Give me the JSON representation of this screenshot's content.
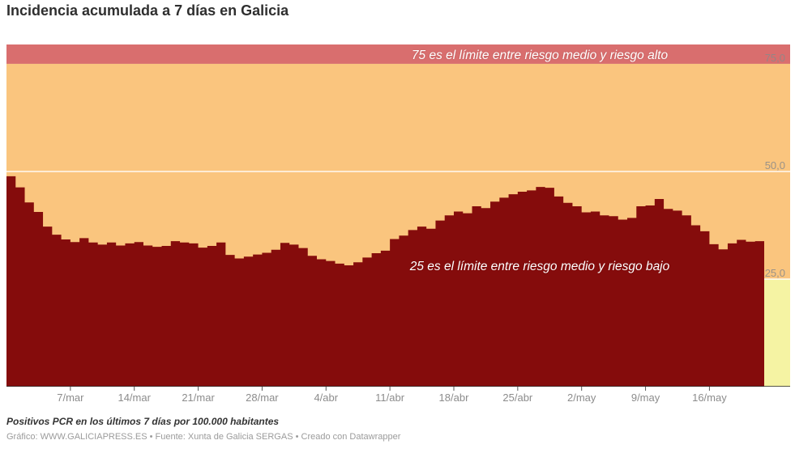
{
  "title": "Incidencia acumulada a 7 días en Galicia",
  "annotations": {
    "high": "75 es el límite entre riesgo medio y riesgo alto",
    "low": "25 es el límite entre riesgo medio y riesgo bajo"
  },
  "footer": {
    "note": "Positivos PCR en los últimos 7 días por 100.000 habitantes",
    "credit": "Gráfico: WWW.GALICIAPRESS.ES • Fuente: Xunta de Galicia SERGAS • Creado con Datawrapper"
  },
  "colors": {
    "area": "#850C0C",
    "band_high": "#D96E6E",
    "band_mid": "#FAC57E",
    "band_low": "#F5F3A3",
    "grid": "#FFFFFF",
    "axis": "#2E2E2E",
    "tick_label": "#8C8C8C",
    "y_label": "#8A8A8A",
    "annotation": "#FFFFFF"
  },
  "chart_data": {
    "type": "area",
    "step": true,
    "title": "Incidencia acumulada a 7 días en Galicia",
    "ylabel": "Positivos PCR en los últimos 7 días por 100.000 habitantes",
    "xlabel": "",
    "ylim": [
      0,
      79.5
    ],
    "grid": "horizontal-white",
    "bands": [
      {
        "name": "riesgo-alto",
        "from": 75,
        "to": 79.5,
        "color": "#D96E6E"
      },
      {
        "name": "riesgo-medio",
        "from": 25,
        "to": 75,
        "color": "#FAC57E"
      },
      {
        "name": "riesgo-bajo",
        "from": 0,
        "to": 25,
        "color": "#F5F3A3"
      }
    ],
    "y_ticks": [
      {
        "value": 75,
        "label": "75,0",
        "line": false
      },
      {
        "value": 50,
        "label": "50,0",
        "line": true
      },
      {
        "value": 25,
        "label": "25,0",
        "line": true
      }
    ],
    "x_ticks": [
      {
        "index": 7,
        "label": "7/mar"
      },
      {
        "index": 14,
        "label": "14/mar"
      },
      {
        "index": 21,
        "label": "21/mar"
      },
      {
        "index": 28,
        "label": "28/mar"
      },
      {
        "index": 35,
        "label": "4/abr"
      },
      {
        "index": 42,
        "label": "11/abr"
      },
      {
        "index": 49,
        "label": "18/abr"
      },
      {
        "index": 56,
        "label": "25/abr"
      },
      {
        "index": 63,
        "label": "2/may"
      },
      {
        "index": 70,
        "label": "9/may"
      },
      {
        "index": 77,
        "label": "16/may"
      }
    ],
    "x": [
      "28/feb",
      "1/mar",
      "2/mar",
      "3/mar",
      "4/mar",
      "5/mar",
      "6/mar",
      "7/mar",
      "8/mar",
      "9/mar",
      "10/mar",
      "11/mar",
      "12/mar",
      "13/mar",
      "14/mar",
      "15/mar",
      "16/mar",
      "17/mar",
      "18/mar",
      "19/mar",
      "20/mar",
      "21/mar",
      "22/mar",
      "23/mar",
      "24/mar",
      "25/mar",
      "26/mar",
      "27/mar",
      "28/mar",
      "29/mar",
      "30/mar",
      "31/mar",
      "1/abr",
      "2/abr",
      "3/abr",
      "4/abr",
      "5/abr",
      "6/abr",
      "7/abr",
      "8/abr",
      "9/abr",
      "10/abr",
      "11/abr",
      "12/abr",
      "13/abr",
      "14/abr",
      "15/abr",
      "16/abr",
      "17/abr",
      "18/abr",
      "19/abr",
      "20/abr",
      "21/abr",
      "22/abr",
      "23/abr",
      "24/abr",
      "25/abr",
      "26/abr",
      "27/abr",
      "28/abr",
      "29/abr",
      "30/abr",
      "1/may",
      "2/may",
      "3/may",
      "4/may",
      "5/may",
      "6/may",
      "7/may",
      "8/may",
      "9/may",
      "10/may",
      "11/may",
      "12/may",
      "13/may",
      "14/may",
      "15/may",
      "16/may",
      "17/may",
      "18/may",
      "19/may",
      "20/may",
      "21/may"
    ],
    "values": [
      48.9,
      46.3,
      42.8,
      40.6,
      37.2,
      35.3,
      34.2,
      33.6,
      34.5,
      33.5,
      33.0,
      33.5,
      32.8,
      33.3,
      33.6,
      32.8,
      32.5,
      32.7,
      33.8,
      33.5,
      33.3,
      32.3,
      32.7,
      33.5,
      30.6,
      29.8,
      30.2,
      30.7,
      31.1,
      31.8,
      33.4,
      33.0,
      32.2,
      30.4,
      29.6,
      29.2,
      28.6,
      28.2,
      28.9,
      30.0,
      31.0,
      31.6,
      34.3,
      35.1,
      36.4,
      37.2,
      36.7,
      38.6,
      39.8,
      40.7,
      40.3,
      41.9,
      41.5,
      43.0,
      43.9,
      44.7,
      45.3,
      45.6,
      46.4,
      46.2,
      44.2,
      42.7,
      41.9,
      40.5,
      40.7,
      39.8,
      39.6,
      38.8,
      39.2,
      41.9,
      42.1,
      43.6,
      41.3,
      40.9,
      39.8,
      37.5,
      36.1,
      33.1,
      31.9,
      33.3,
      34.1,
      33.7,
      33.8
    ]
  }
}
